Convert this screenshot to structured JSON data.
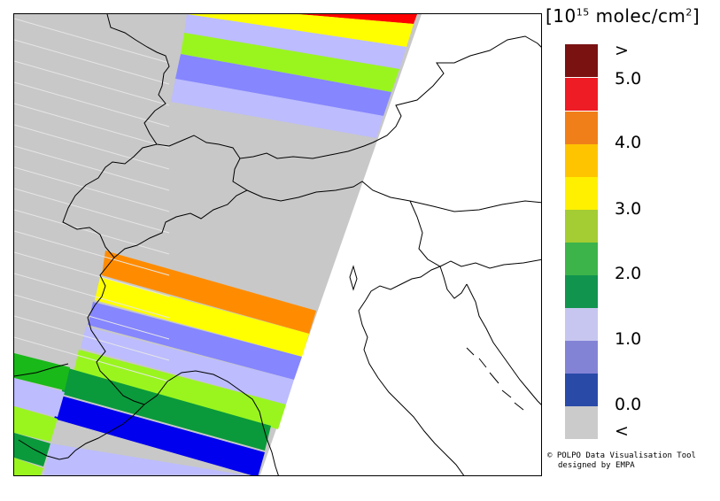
{
  "colorbar": {
    "unit_prefix": "[10",
    "unit_exponent": "15",
    "unit_suffix": " molec/cm",
    "unit_square": "2",
    "unit_close": "]",
    "colors": [
      "#7a1212",
      "#ee1c24",
      "#f07f1a",
      "#ffc400",
      "#fff000",
      "#a4cc33",
      "#3cb44a",
      "#11944e",
      "#c6c6f0",
      "#8383d6",
      "#2a4aa8",
      "#cbcbcb"
    ],
    "labels": [
      ">",
      "5.0",
      "4.0",
      "3.0",
      "2.0",
      "1.0",
      "0.0",
      "<"
    ]
  },
  "bands": {
    "gray": "#c8c8c8",
    "orange": "#ff8c00",
    "yellow": "#ffff00",
    "lime": "#9af51f",
    "lavender": "#bcbcff",
    "periwinkle": "#8686ff",
    "dark_green": "#0a9a3c",
    "green": "#19b919",
    "blue": "#0000ee",
    "red": "#ff0000"
  },
  "credit": {
    "line1": "© POLPO Data Visualisation Tool",
    "line2": "designed by EMPA"
  }
}
